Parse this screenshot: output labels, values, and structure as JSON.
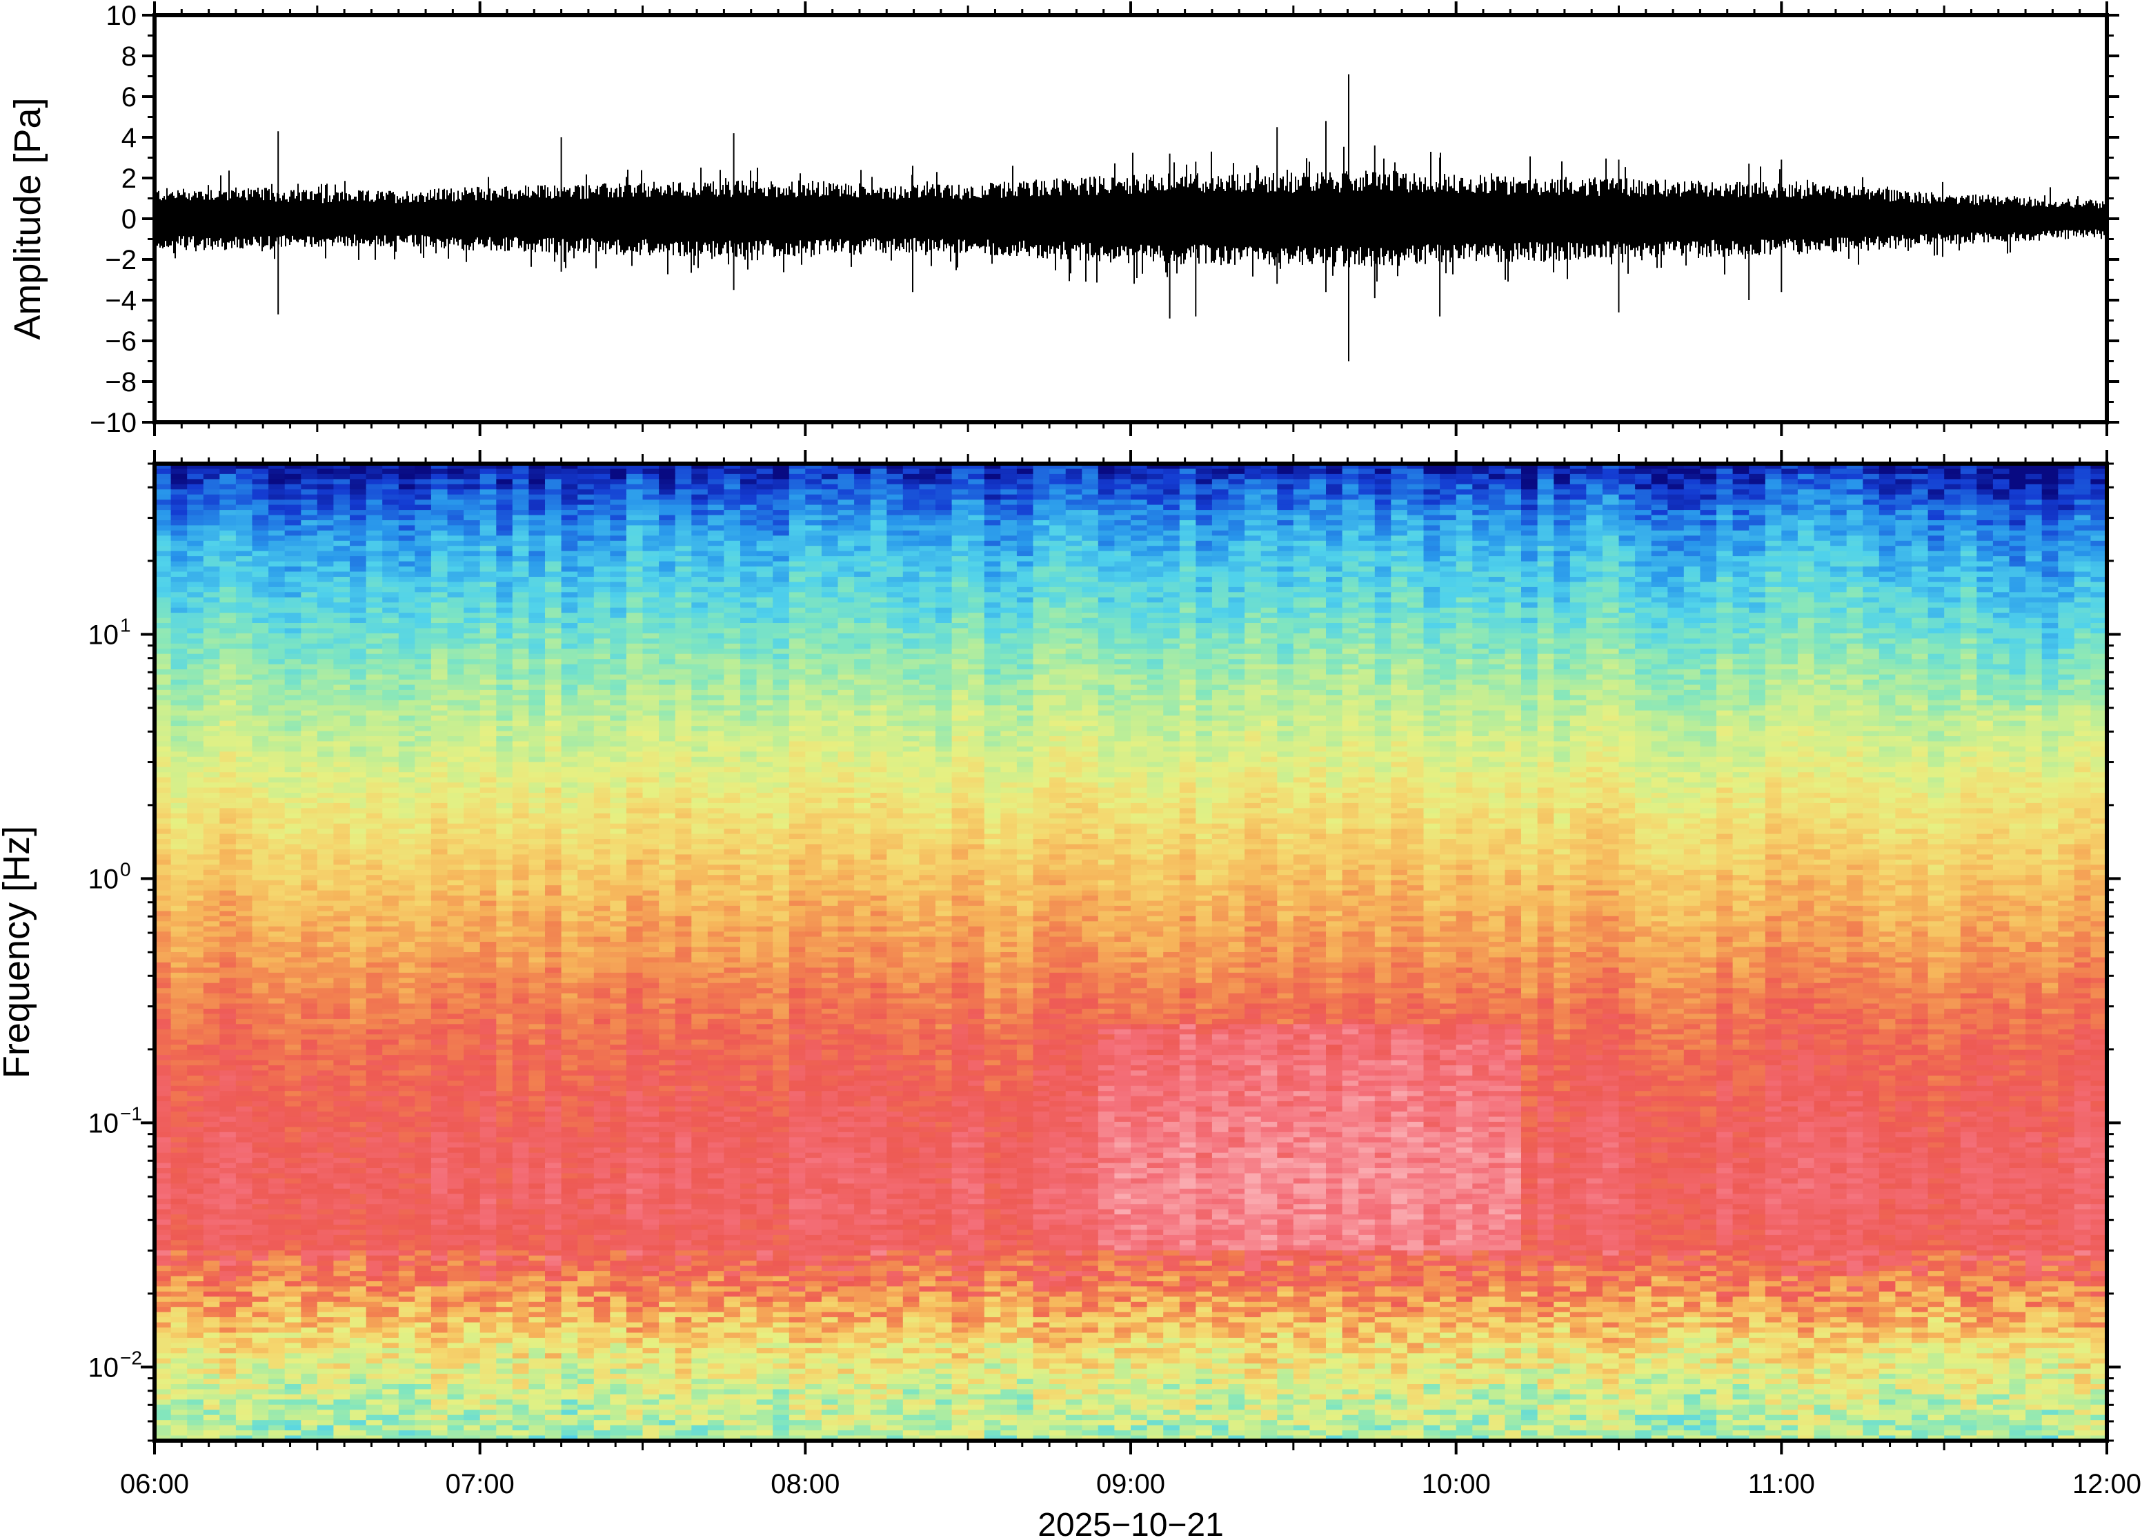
{
  "chart_data": [
    {
      "type": "line",
      "ylabel": "Amplitude [Pa]",
      "ylim": [
        -10,
        10
      ],
      "yticks": [
        "10",
        "8",
        "6",
        "4",
        "2",
        "0",
        "−2",
        "−4",
        "−6",
        "−8",
        "−10"
      ],
      "ytick_values": [
        10,
        8,
        6,
        4,
        2,
        0,
        -2,
        -4,
        -6,
        -8,
        -10
      ],
      "xlim": [
        "2025-10-21T06:00",
        "2025-10-21T12:00"
      ],
      "envelope": {
        "t_hours": [
          6.0,
          6.25,
          6.5,
          6.75,
          7.0,
          7.25,
          7.5,
          7.75,
          8.0,
          8.25,
          8.5,
          8.75,
          9.0,
          9.25,
          9.5,
          9.75,
          10.0,
          10.25,
          10.5,
          10.75,
          11.0,
          11.25,
          11.5,
          11.75,
          12.0
        ],
        "amplitude_pa": [
          1.5,
          1.6,
          1.4,
          1.4,
          1.6,
          1.7,
          1.8,
          1.9,
          1.9,
          1.7,
          1.7,
          2.0,
          2.2,
          2.3,
          2.3,
          2.4,
          2.2,
          2.1,
          2.0,
          1.9,
          1.8,
          1.6,
          1.3,
          1.1,
          0.9
        ]
      },
      "spikes": [
        {
          "t_hours": 6.38,
          "max": 4.3,
          "min": -4.7
        },
        {
          "t_hours": 7.25,
          "max": 4.0,
          "min": -2.6
        },
        {
          "t_hours": 7.78,
          "max": 4.2,
          "min": -3.5
        },
        {
          "t_hours": 8.33,
          "max": 2.6,
          "min": -3.6
        },
        {
          "t_hours": 9.12,
          "max": 3.2,
          "min": -4.9
        },
        {
          "t_hours": 9.2,
          "max": 2.8,
          "min": -4.8
        },
        {
          "t_hours": 9.45,
          "max": 4.5,
          "min": -3.2
        },
        {
          "t_hours": 9.6,
          "max": 4.8,
          "min": -3.6
        },
        {
          "t_hours": 9.67,
          "max": 7.1,
          "min": -7.0
        },
        {
          "t_hours": 9.75,
          "max": 3.6,
          "min": -3.9
        },
        {
          "t_hours": 9.95,
          "max": 3.0,
          "min": -4.8
        },
        {
          "t_hours": 10.5,
          "max": 2.9,
          "min": -4.6
        },
        {
          "t_hours": 10.9,
          "max": 2.7,
          "min": -4.0
        },
        {
          "t_hours": 11.0,
          "max": 2.9,
          "min": -3.6
        }
      ]
    },
    {
      "type": "heatmap",
      "ylabel": "Frequency [Hz]",
      "yscale": "log",
      "ylim": [
        0.005,
        50
      ],
      "yticks": [
        {
          "value": 10,
          "base": "10",
          "exp": "1"
        },
        {
          "value": 1,
          "base": "10",
          "exp": "0"
        },
        {
          "value": 0.1,
          "base": "10",
          "exp": "−1"
        },
        {
          "value": 0.01,
          "base": "10",
          "exp": "−2"
        }
      ],
      "xlim": [
        "2025-10-21T06:00",
        "2025-10-21T12:00"
      ],
      "xticks": [
        "06:00",
        "07:00",
        "08:00",
        "09:00",
        "10:00",
        "11:00",
        "12:00"
      ],
      "xtick_hours": [
        6,
        7,
        8,
        9,
        10,
        11,
        12
      ],
      "xlabel": "2025−10−21",
      "colormap": "rainbow",
      "color_stops": [
        "#56e8e6",
        "#8de8b0",
        "#d6f08c",
        "#f0e07a",
        "#f5b25a",
        "#f28a50",
        "#ef5a55",
        "#f88a90"
      ],
      "profile": {
        "freq_hz": [
          50,
          45,
          30,
          20,
          12,
          8,
          5,
          3,
          2,
          1.2,
          0.8,
          0.5,
          0.3,
          0.2,
          0.12,
          0.08,
          0.05,
          0.03,
          0.02,
          0.012,
          0.008,
          0.005
        ],
        "level": [
          0.02,
          0.05,
          0.14,
          0.2,
          0.26,
          0.32,
          0.38,
          0.44,
          0.5,
          0.56,
          0.61,
          0.66,
          0.72,
          0.76,
          0.79,
          0.82,
          0.83,
          0.8,
          0.68,
          0.52,
          0.42,
          0.36
        ]
      },
      "enhanced_low_freq_window_hours": [
        8.9,
        10.2
      ]
    }
  ]
}
